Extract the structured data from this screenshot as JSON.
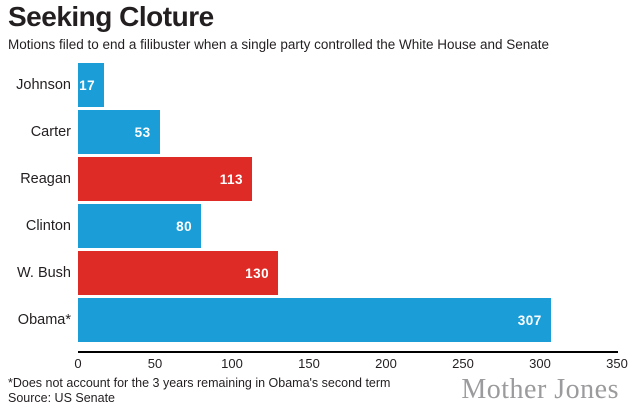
{
  "header": {
    "title": "Seeking Cloture",
    "subtitle": "Motions filed to end a filibuster when a single party controlled the White House and Senate"
  },
  "chart_data": {
    "type": "bar",
    "orientation": "horizontal",
    "title": "Seeking Cloture",
    "subtitle": "Motions filed to end a filibuster when a single party controlled the White House and Senate",
    "categories": [
      "Johnson",
      "Carter",
      "Reagan",
      "Clinton",
      "W. Bush",
      "Obama*"
    ],
    "values": [
      17,
      53,
      113,
      80,
      130,
      307
    ],
    "bar_colors": [
      "#1b9ed8",
      "#1b9ed8",
      "#df2b26",
      "#1b9ed8",
      "#df2b26",
      "#1b9ed8"
    ],
    "value_label_color": "#ffffff",
    "xlim": [
      0,
      350
    ],
    "x_ticks": [
      "0",
      "50",
      "100",
      "150",
      "200",
      "250",
      "300",
      "350"
    ],
    "grid": false,
    "legend": "none",
    "xlabel": "",
    "ylabel": ""
  },
  "colors": {
    "democrat_blue": "#1b9ed8",
    "republican_red": "#df2b26",
    "axis": "#000000",
    "text": "#231f20",
    "brand_gray": "#9b9b9e"
  },
  "footer": {
    "footnote": "*Does not account for the 3 years remaining in Obama's second term",
    "source": "Source: US Senate",
    "brand": "Mother Jones"
  }
}
